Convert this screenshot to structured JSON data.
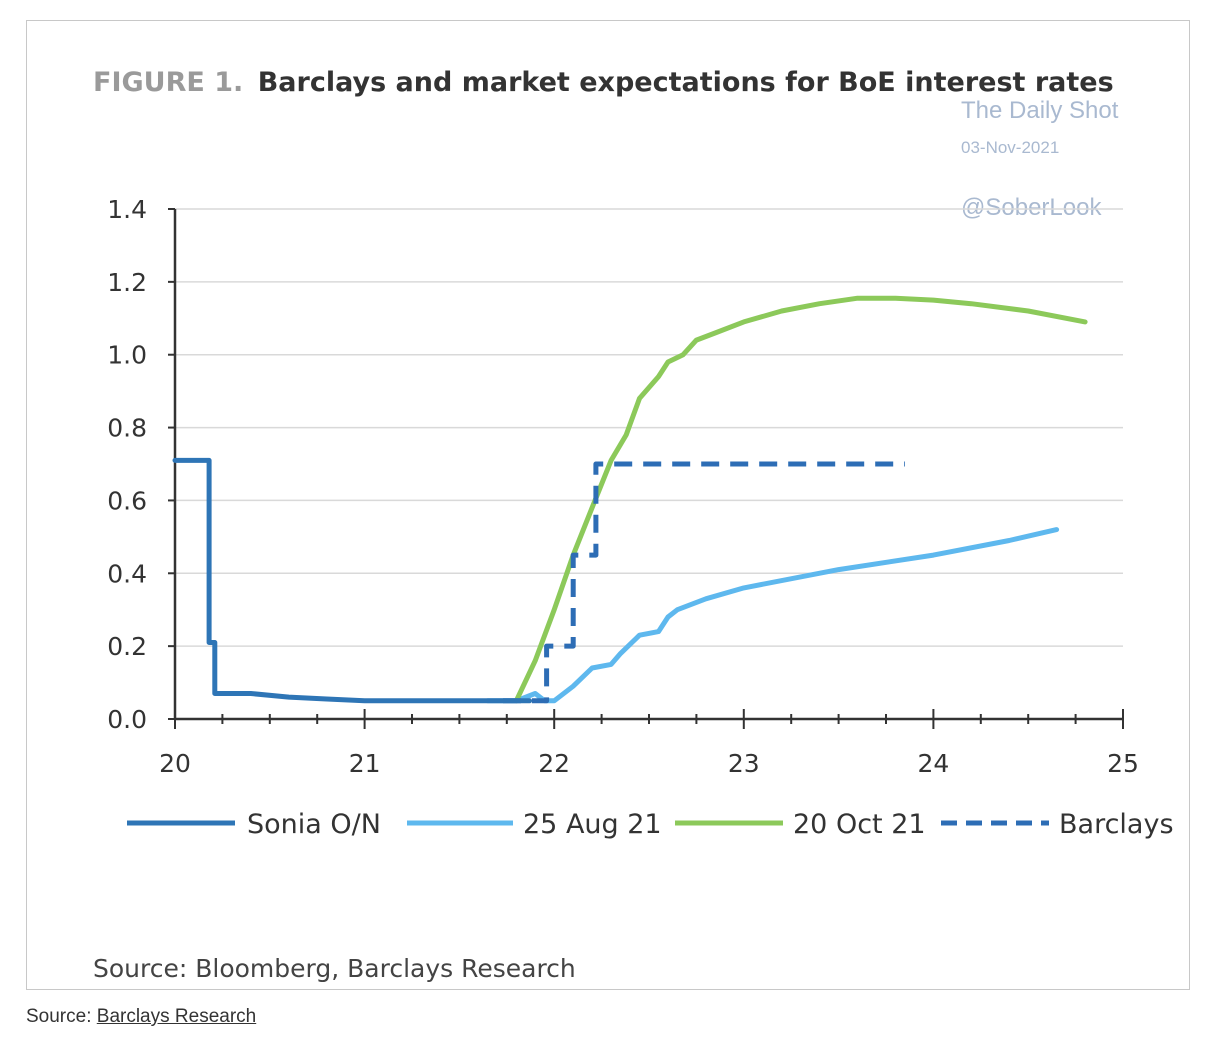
{
  "figure": {
    "label": "FIGURE 1.",
    "title": "Barclays and market expectations for BoE interest rates",
    "source_inner": "Source: Bloomberg, Barclays Research"
  },
  "watermark": {
    "line1": "The Daily Shot",
    "line2": "03-Nov-2021",
    "line3": "@SoberLook"
  },
  "footer": {
    "prefix": "Source: ",
    "link_text": "Barclays Research"
  },
  "colors": {
    "sonia": "#2e75b6",
    "aug": "#5eb8ee",
    "oct": "#8cc95a",
    "barclays": "#2d6db5",
    "grid": "#d9d9d9",
    "axis": "#333333"
  },
  "chart_data": {
    "type": "line",
    "title": "Barclays and market expectations for BoE interest rates",
    "xlabel": "",
    "ylabel": "",
    "xlim": [
      20,
      25
    ],
    "ylim": [
      0,
      1.4
    ],
    "x_ticks": [
      20,
      21,
      22,
      23,
      24,
      25
    ],
    "x_tick_labels": [
      "20",
      "21",
      "22",
      "23",
      "24",
      "25"
    ],
    "y_ticks": [
      0,
      0.2,
      0.4,
      0.6,
      0.8,
      1.0,
      1.2,
      1.4
    ],
    "y_tick_labels": [
      "0.0",
      "0.2",
      "0.4",
      "0.6",
      "0.8",
      "1.0",
      "1.2",
      "1.4"
    ],
    "grid": true,
    "legend_position": "bottom",
    "series": [
      {
        "name": "Sonia O/N",
        "style": "solid",
        "x": [
          20.0,
          20.18,
          20.18,
          20.19,
          20.21,
          20.21,
          20.23,
          20.4,
          20.6,
          20.8,
          21.0,
          21.2,
          21.4,
          21.6,
          21.8,
          21.87
        ],
        "y": [
          0.71,
          0.71,
          0.21,
          0.21,
          0.21,
          0.07,
          0.07,
          0.07,
          0.06,
          0.055,
          0.05,
          0.05,
          0.05,
          0.05,
          0.05,
          0.05
        ]
      },
      {
        "name": "25 Aug 21",
        "style": "solid",
        "x": [
          21.65,
          21.8,
          21.9,
          21.95,
          22.0,
          22.1,
          22.2,
          22.3,
          22.35,
          22.45,
          22.55,
          22.6,
          22.65,
          22.8,
          23.0,
          23.5,
          24.0,
          24.4,
          24.65
        ],
        "y": [
          0.05,
          0.05,
          0.07,
          0.05,
          0.05,
          0.09,
          0.14,
          0.15,
          0.18,
          0.23,
          0.24,
          0.28,
          0.3,
          0.33,
          0.36,
          0.41,
          0.45,
          0.49,
          0.52
        ]
      },
      {
        "name": "20 Oct 21",
        "style": "solid",
        "x": [
          21.8,
          21.9,
          22.0,
          22.1,
          22.2,
          22.3,
          22.38,
          22.45,
          22.5,
          22.55,
          22.6,
          22.68,
          22.75,
          22.85,
          23.0,
          23.2,
          23.4,
          23.6,
          23.8,
          24.0,
          24.2,
          24.5,
          24.8
        ],
        "y": [
          0.05,
          0.16,
          0.3,
          0.45,
          0.58,
          0.71,
          0.78,
          0.88,
          0.91,
          0.94,
          0.98,
          1.0,
          1.04,
          1.06,
          1.09,
          1.12,
          1.14,
          1.155,
          1.155,
          1.15,
          1.14,
          1.12,
          1.09
        ]
      },
      {
        "name": "Barclays",
        "style": "dashed",
        "x": [
          21.73,
          21.96,
          21.96,
          22.1,
          22.1,
          22.22,
          22.22,
          23.85
        ],
        "y": [
          0.05,
          0.05,
          0.2,
          0.2,
          0.45,
          0.45,
          0.7,
          0.7
        ]
      }
    ]
  }
}
